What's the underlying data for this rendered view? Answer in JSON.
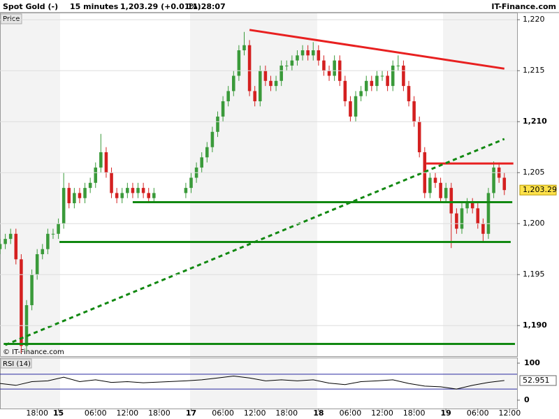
{
  "chart_data": {
    "type": "candlestick",
    "header": {
      "instrument": "Spot Gold (-)",
      "interval": "15 minutes",
      "quote": "1,203.29 (+0.01%)",
      "time": "11:28:07",
      "brand": "IT-Finance.com"
    },
    "panel_label": "Price",
    "watermark": "© IT-Finance.com",
    "xlim": [
      0,
      97.4
    ],
    "xticks": [
      {
        "value": 7,
        "label": "18:00"
      },
      {
        "value": 11,
        "label": "15"
      },
      {
        "value": 18,
        "label": "06:00"
      },
      {
        "value": 24,
        "label": "12:00"
      },
      {
        "value": 30,
        "label": "18:00"
      },
      {
        "value": 36,
        "label": "17"
      },
      {
        "value": 42,
        "label": "06:00"
      },
      {
        "value": 48,
        "label": "12:00"
      },
      {
        "value": 54,
        "label": "18:00"
      },
      {
        "value": 60,
        "label": "18"
      },
      {
        "value": 66,
        "label": "06:00"
      },
      {
        "value": 72,
        "label": "12:00"
      },
      {
        "value": 78,
        "label": "18:00"
      },
      {
        "value": 84,
        "label": "19"
      },
      {
        "value": 90,
        "label": "06:00"
      },
      {
        "value": 96,
        "label": "12:00"
      }
    ],
    "ylim": [
      1187,
      1220.7
    ],
    "yticks": [
      {
        "value": 1190,
        "label": "1,190"
      },
      {
        "value": 1195,
        "label": "1,195"
      },
      {
        "value": 1200,
        "label": "1,200"
      },
      {
        "value": 1205,
        "label": "1,205"
      },
      {
        "value": 1210,
        "label": "1,210"
      },
      {
        "value": 1215,
        "label": "1,215"
      },
      {
        "value": 1220,
        "label": "1,220"
      }
    ],
    "grid": true,
    "up_color": "#3a9a3a",
    "down_color": "#d42020",
    "x": [
      0,
      1,
      2,
      3,
      4,
      5,
      6,
      7,
      8,
      9,
      10,
      11,
      12,
      13,
      14,
      15,
      16,
      17,
      18,
      19,
      20,
      21,
      22,
      23,
      24,
      25,
      26,
      27,
      28,
      29,
      35,
      36,
      37,
      38,
      39,
      40,
      41,
      42,
      43,
      44,
      45,
      46,
      47,
      48,
      49,
      50,
      51,
      52,
      53,
      54,
      55,
      56,
      57,
      58,
      59,
      60,
      61,
      62,
      63,
      64,
      65,
      66,
      67,
      68,
      69,
      70,
      71,
      72,
      73,
      74,
      75,
      76,
      77,
      78,
      79,
      80,
      81,
      82,
      83,
      84,
      85,
      86,
      87,
      88,
      89,
      90,
      91,
      92,
      93,
      94,
      95
    ],
    "open": [
      1197.5,
      1198,
      1198.5,
      1199,
      1196.5,
      1188,
      1192,
      1195,
      1197,
      1197.5,
      1199,
      1199,
      1200,
      1203.5,
      1202,
      1203,
      1202.5,
      1203.5,
      1204,
      1205.5,
      1207,
      1205,
      1203,
      1202.5,
      1203,
      1203.5,
      1203,
      1203.5,
      1203,
      1202.5,
      1203,
      1203.5,
      1204.5,
      1205.5,
      1206.5,
      1207.5,
      1209,
      1210.5,
      1212,
      1213,
      1214.5,
      1217,
      1217.5,
      1213,
      1212,
      1215,
      1214,
      1213.5,
      1214,
      1215.5,
      1215.5,
      1216,
      1216.5,
      1217,
      1216.5,
      1217,
      1216,
      1215,
      1214.5,
      1216,
      1214,
      1212,
      1210.5,
      1212.5,
      1213,
      1214,
      1213.5,
      1214.5,
      1214.5,
      1213.5,
      1215.5,
      1215.5,
      1213.5,
      1212,
      1210,
      1207,
      1203,
      1204.5,
      1204,
      1202.5,
      1203.5,
      1201,
      1199.5,
      1201.5,
      1202,
      1201.5,
      1200,
      1199,
      1203,
      1205.5,
      1204.5
    ],
    "high": [
      1198.5,
      1199,
      1199.5,
      1199.5,
      1197,
      1192.5,
      1195.5,
      1197.5,
      1198,
      1199.5,
      1199.5,
      1200.5,
      1205,
      1204,
      1203.5,
      1203.5,
      1204,
      1204.5,
      1206,
      1208.8,
      1207.5,
      1205.5,
      1203.5,
      1203.5,
      1204,
      1204,
      1204,
      1204,
      1203.5,
      1203.5,
      1204,
      1205,
      1206,
      1207,
      1208,
      1209.5,
      1211,
      1212.5,
      1213.5,
      1215,
      1217.5,
      1218.8,
      1218,
      1213.5,
      1215.5,
      1215.5,
      1214.5,
      1214.5,
      1216,
      1216,
      1216.5,
      1217,
      1217.5,
      1217.5,
      1217.8,
      1217.5,
      1216.5,
      1215.5,
      1216.5,
      1216.5,
      1214.5,
      1212.5,
      1213,
      1213.5,
      1214.5,
      1214.5,
      1215,
      1215,
      1215,
      1216,
      1216.5,
      1216,
      1214,
      1212.5,
      1210.5,
      1207.5,
      1205,
      1205,
      1204.5,
      1204,
      1204,
      1201.5,
      1202,
      1202.5,
      1202.5,
      1202,
      1200.5,
      1203.5,
      1206.1,
      1206,
      1205
    ],
    "low": [
      1197,
      1197.5,
      1198,
      1196,
      1187.3,
      1187.5,
      1191.5,
      1194.5,
      1196.5,
      1197,
      1198.5,
      1198.5,
      1199.5,
      1201.5,
      1201.5,
      1202,
      1202,
      1203,
      1203.5,
      1205,
      1204.5,
      1202.5,
      1202,
      1202,
      1202.5,
      1202.5,
      1202.5,
      1202.5,
      1202,
      1202,
      1202.5,
      1203,
      1204,
      1205,
      1206,
      1207,
      1208.5,
      1210,
      1211.5,
      1212.5,
      1214,
      1216.5,
      1212.5,
      1211.5,
      1211.5,
      1213.5,
      1213,
      1213,
      1213.5,
      1215,
      1215,
      1215.5,
      1216,
      1216,
      1216,
      1215.5,
      1214.5,
      1214,
      1214,
      1213.5,
      1211.5,
      1210,
      1210,
      1212,
      1212.5,
      1213,
      1213,
      1214,
      1213,
      1213,
      1215,
      1213,
      1211.5,
      1209.5,
      1206.5,
      1202.5,
      1202.5,
      1203.5,
      1202,
      1202,
      1197.6,
      1199,
      1199,
      1201,
      1201,
      1199.5,
      1198.3,
      1198.5,
      1202.5,
      1204,
      1202.8
    ],
    "close": [
      1198,
      1198.5,
      1199,
      1196.5,
      1188,
      1192,
      1195,
      1197,
      1197.5,
      1199,
      1199,
      1200,
      1203.5,
      1202,
      1203,
      1202.5,
      1203.5,
      1204,
      1205.5,
      1207,
      1205,
      1203,
      1202.5,
      1203,
      1203.5,
      1203,
      1203.5,
      1203,
      1202.5,
      1203,
      1203.5,
      1204.5,
      1205.5,
      1206.5,
      1207.5,
      1209,
      1210.5,
      1212,
      1213,
      1214.5,
      1217,
      1217.5,
      1213,
      1212,
      1215,
      1214,
      1213.5,
      1214,
      1215.5,
      1215.5,
      1216,
      1216.5,
      1217,
      1216.5,
      1217,
      1216,
      1215,
      1214.5,
      1216,
      1214,
      1212,
      1210.5,
      1212.5,
      1213,
      1214,
      1213.5,
      1214.5,
      1214.5,
      1213.5,
      1215.5,
      1215.5,
      1213.5,
      1212,
      1210,
      1207,
      1203,
      1204.5,
      1204,
      1202.5,
      1203.5,
      1201,
      1199.5,
      1201.5,
      1202,
      1201.5,
      1200,
      1199,
      1203,
      1205.5,
      1204.5,
      1203.29
    ],
    "last_price": {
      "value": 1203.29,
      "label": "1,203.29"
    },
    "lines": [
      {
        "x": [
          47,
          95
        ],
        "y": [
          1219,
          1215.2
        ],
        "color": "#e82020",
        "dashed": false
      },
      {
        "x": [
          80.3,
          96.7
        ],
        "y": [
          1205.9,
          1205.9
        ],
        "color": "#e82020",
        "dashed": false
      },
      {
        "x": [
          1,
          95
        ],
        "y": [
          1188.1,
          1208.3
        ],
        "color": "#118811",
        "dashed": true
      },
      {
        "x": [
          25,
          96.5
        ],
        "y": [
          1202.1,
          1202.1
        ],
        "color": "#118811",
        "dashed": false
      },
      {
        "x": [
          11.2,
          96.2
        ],
        "y": [
          1198.2,
          1198.2
        ],
        "color": "#118811",
        "dashed": false
      },
      {
        "x": [
          0.7,
          97
        ],
        "y": [
          1188.2,
          1188.2
        ],
        "color": "#118811",
        "dashed": false
      }
    ],
    "rsi": {
      "label": "RSI (14)",
      "ylim": [
        0,
        100
      ],
      "yticks": [
        0,
        100
      ],
      "levels": [
        30,
        70
      ],
      "color": "#000000",
      "level_color": "#2a2aa0",
      "x": [
        0,
        3,
        6,
        9,
        12,
        15,
        18,
        21,
        24,
        27,
        35,
        38,
        41,
        44,
        47,
        50,
        53,
        56,
        59,
        62,
        65,
        68,
        71,
        74,
        77,
        80,
        83,
        86,
        89,
        92,
        95
      ],
      "values": [
        45,
        40,
        50,
        52,
        62,
        50,
        55,
        48,
        50,
        47,
        52,
        55,
        60,
        65,
        60,
        52,
        55,
        52,
        55,
        46,
        42,
        50,
        52,
        55,
        45,
        38,
        36,
        30,
        40,
        48,
        52.951
      ]
    }
  }
}
